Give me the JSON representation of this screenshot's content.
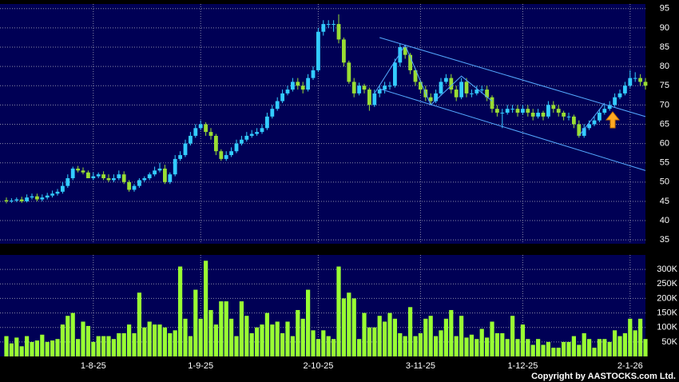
{
  "chart_data": {
    "type": "candlestick",
    "categories": [
      null,
      null,
      null,
      null,
      null,
      null,
      null,
      null,
      null,
      null,
      null,
      null,
      null,
      null,
      null,
      null,
      null,
      "1-8-25",
      null,
      null,
      null,
      null,
      null,
      null,
      null,
      null,
      null,
      null,
      null,
      null,
      null,
      null,
      null,
      null,
      null,
      null,
      null,
      null,
      "1-9-25",
      null,
      null,
      null,
      null,
      null,
      null,
      null,
      null,
      null,
      null,
      null,
      null,
      null,
      null,
      null,
      null,
      null,
      null,
      null,
      null,
      null,
      null,
      "2-10-25",
      null,
      null,
      null,
      null,
      null,
      null,
      null,
      null,
      null,
      null,
      null,
      null,
      null,
      null,
      null,
      null,
      null,
      null,
      null,
      "3-11-25",
      null,
      null,
      null,
      null,
      null,
      null,
      null,
      null,
      null,
      null,
      null,
      null,
      null,
      null,
      null,
      null,
      null,
      null,
      null,
      "1-12-25",
      null,
      null,
      null,
      null,
      null,
      null,
      null,
      null,
      null,
      null,
      null,
      null,
      null,
      null,
      null,
      null,
      null,
      null,
      null,
      null,
      "2-1-26",
      null,
      null,
      null
    ],
    "open": [
      45.3,
      45,
      45.2,
      45.5,
      45,
      46,
      46.3,
      45.5,
      46,
      46.5,
      47,
      47.5,
      49,
      51,
      53.5,
      53,
      52.5,
      51,
      51.5,
      52,
      51,
      50.5,
      51,
      52,
      50,
      48,
      49,
      50.5,
      51,
      52,
      53,
      53.5,
      50,
      52,
      56,
      57,
      60,
      62,
      64,
      65,
      63,
      62,
      58,
      56,
      57,
      58,
      60,
      61,
      62,
      62.5,
      63,
      64,
      67,
      69,
      71,
      73,
      74,
      76,
      75,
      74,
      77,
      79,
      89,
      91,
      91,
      91,
      87,
      81,
      76,
      73,
      75,
      74,
      70,
      73,
      74,
      75,
      75,
      81,
      85,
      83,
      79,
      76,
      74,
      72,
      71,
      73,
      76,
      77,
      74,
      72,
      76,
      73,
      73,
      74,
      74,
      72,
      69,
      68,
      68,
      69,
      69,
      68,
      69,
      68,
      67,
      68,
      67,
      70,
      69,
      68,
      67,
      67,
      65,
      62,
      64,
      65,
      66,
      68,
      69,
      70,
      72,
      73,
      75,
      77,
      77,
      76
    ],
    "high": [
      46,
      45.8,
      46,
      46.2,
      46.8,
      47,
      47,
      46.8,
      47.2,
      47.8,
      48.2,
      50,
      52,
      54,
      54.2,
      53.8,
      53,
      52.5,
      52.5,
      52.8,
      52,
      52,
      53,
      52.8,
      50.5,
      49.5,
      51,
      51.5,
      52.5,
      54,
      55,
      54.5,
      52.5,
      57,
      58,
      61,
      63,
      65,
      66,
      65.5,
      64,
      62.5,
      58.5,
      58,
      59,
      61,
      62,
      63,
      63.5,
      64,
      65,
      68,
      70,
      72,
      74,
      75,
      77,
      77,
      76,
      78,
      80,
      90,
      92,
      92,
      92,
      93.5,
      87.5,
      81.5,
      77,
      75.8,
      75.5,
      74.5,
      74,
      75,
      76,
      76,
      82,
      86,
      85,
      83.5,
      79.5,
      76.5,
      75,
      73,
      74,
      77,
      78,
      78,
      75,
      77,
      77,
      74,
      75,
      75,
      75,
      72.5,
      70,
      69,
      70,
      70,
      70,
      70,
      70,
      69,
      69,
      68.5,
      71,
      71,
      70,
      68.5,
      68,
      67.5,
      66,
      65,
      66,
      67,
      69,
      70,
      71,
      73,
      74,
      76,
      79,
      78.5,
      78,
      77
    ],
    "low": [
      44.5,
      44.6,
      44.8,
      44.6,
      44.7,
      45.5,
      45,
      45,
      45.5,
      46,
      46.5,
      47,
      48.5,
      50.5,
      52.5,
      52,
      51,
      50.5,
      51,
      50.5,
      50,
      50,
      50.5,
      49.5,
      47.5,
      47.5,
      48.5,
      50,
      50.5,
      51.5,
      52.5,
      49.5,
      49.5,
      51.5,
      55.5,
      56.5,
      59.5,
      61.5,
      63.5,
      62,
      61,
      57,
      55.5,
      55.5,
      56.5,
      57.5,
      59.5,
      60.5,
      61.5,
      62,
      62.5,
      63.5,
      66.5,
      68.5,
      70.5,
      72.5,
      73.5,
      74,
      73,
      73.5,
      76.5,
      78.5,
      88,
      90,
      89,
      86,
      80,
      75.5,
      72,
      72.5,
      73,
      68.5,
      69.5,
      72,
      73,
      74,
      74.5,
      80,
      82,
      78,
      75,
      73,
      71,
      70,
      70.5,
      72.5,
      75.5,
      73,
      71,
      71.5,
      72,
      72,
      72.5,
      73,
      71,
      68,
      67,
      64,
      67.5,
      68,
      67,
      67.5,
      67,
      66,
      66.5,
      66,
      66.5,
      68,
      67,
      66,
      66,
      64,
      61.5,
      61.5,
      63.5,
      64.5,
      65.5,
      67.5,
      68.5,
      69.5,
      71.5,
      72.5,
      74.5,
      76,
      75,
      74
    ],
    "close": [
      45,
      45.2,
      45.5,
      45,
      46,
      46.3,
      45.5,
      46,
      46.5,
      47,
      47.5,
      49,
      51,
      53.5,
      53,
      52.5,
      51,
      51.5,
      52,
      51,
      50.5,
      51,
      52,
      50,
      48,
      49,
      50.5,
      51,
      52,
      53,
      53.5,
      50,
      52,
      56,
      57,
      60,
      62,
      64,
      65,
      63,
      62,
      58,
      56,
      57,
      58,
      60,
      61,
      62,
      62.5,
      63,
      64,
      67,
      69,
      71,
      73,
      74,
      76,
      75,
      74,
      77,
      79,
      89,
      91,
      91,
      91,
      87,
      81,
      76,
      73,
      75,
      74,
      70,
      73,
      74,
      75,
      75,
      81,
      85,
      83,
      79,
      76,
      74,
      72,
      71,
      73,
      76,
      77,
      74,
      72,
      76,
      73,
      73,
      74,
      74,
      72,
      69,
      68,
      68,
      69,
      69,
      68,
      69,
      68,
      67,
      68,
      67,
      70,
      69,
      68,
      67,
      67,
      65,
      62,
      64,
      65,
      66,
      68,
      69,
      70,
      72,
      73,
      75,
      77,
      77,
      76,
      75
    ],
    "volume": [
      70000,
      45000,
      65000,
      35000,
      70000,
      50000,
      55000,
      75000,
      50000,
      55000,
      60000,
      110000,
      140000,
      150000,
      60000,
      120000,
      105000,
      50000,
      70000,
      70000,
      70000,
      60000,
      80000,
      80000,
      110000,
      80000,
      220000,
      100000,
      120000,
      110000,
      110000,
      100000,
      80000,
      90000,
      310000,
      130000,
      70000,
      230000,
      130000,
      330000,
      160000,
      110000,
      190000,
      190000,
      130000,
      70000,
      190000,
      140000,
      80000,
      100000,
      110000,
      150000,
      110000,
      120000,
      80000,
      120000,
      70000,
      160000,
      130000,
      230000,
      90000,
      60000,
      90000,
      70000,
      60000,
      310000,
      200000,
      220000,
      200000,
      60000,
      150000,
      100000,
      100000,
      140000,
      120000,
      150000,
      130000,
      80000,
      70000,
      170000,
      70000,
      80000,
      130000,
      140000,
      70000,
      90000,
      130000,
      160000,
      70000,
      140000,
      65000,
      75000,
      60000,
      95000,
      65000,
      120000,
      80000,
      80000,
      60000,
      140000,
      60000,
      110000,
      60000,
      40000,
      60000,
      40000,
      50000,
      30000,
      30000,
      50000,
      50000,
      70000,
      40000,
      80000,
      60000,
      30000,
      60000,
      60000,
      50000,
      90000,
      70000,
      80000,
      130000,
      90000,
      130000,
      60000
    ],
    "up_color": "#33ccff",
    "down_color": "#99dd33",
    "volume_color": "#99ff33",
    "trendline_color": "#55aaff",
    "ylim": [
      34,
      96.2
    ],
    "yticks": [
      35,
      40,
      45,
      50,
      55,
      60,
      65,
      70,
      75,
      80,
      85,
      90,
      95
    ],
    "volume_ylim": [
      0,
      350000
    ],
    "volume_yticks": [
      {
        "value": 50000,
        "label": "50K"
      },
      {
        "value": 100000,
        "label": "100K"
      },
      {
        "value": 150000,
        "label": "150K"
      },
      {
        "value": 200000,
        "label": "200K"
      },
      {
        "value": 250000,
        "label": "250K"
      },
      {
        "value": 300000,
        "label": "300K"
      }
    ],
    "trendlines": [
      {
        "x": [
          73,
          125
        ],
        "values": [
          87.5,
          67
        ]
      },
      {
        "x": [
          73,
          125
        ],
        "values": [
          74.2,
          53
        ]
      },
      {
        "x": [
          72,
          78,
          83,
          89,
          95
        ],
        "values": [
          73,
          85.5,
          70,
          77.5,
          71
        ]
      },
      {
        "x": [
          112,
          117
        ],
        "values": [
          62,
          70.5
        ]
      }
    ],
    "grid": true,
    "copyright": "Copyright by AASTOCKS.com Ltd."
  }
}
